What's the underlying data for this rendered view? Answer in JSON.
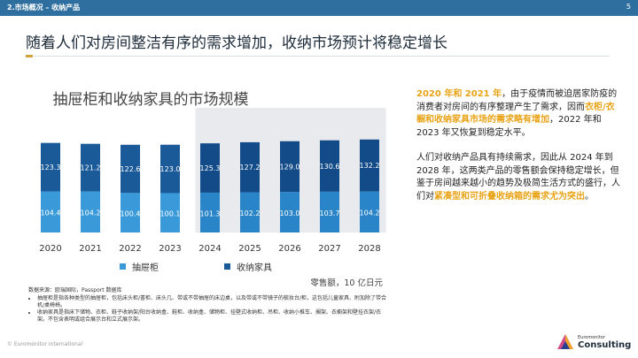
{
  "header": {
    "breadcrumb": "2.市场概况 – 收纳产品",
    "page_number": "5"
  },
  "headline": "随着人们对房间整洁有序的需求增加，收纳市场预计将稳定增长",
  "chart_data": {
    "type": "bar",
    "stacked": true,
    "title": "抽屉柜和收纳家具的市场规模",
    "categories": [
      "2020",
      "2021",
      "2022",
      "2023",
      "2024",
      "2025",
      "2026",
      "2027",
      "2028"
    ],
    "series": [
      {
        "name": "抽屉柜",
        "values": [
          104.4,
          104.2,
          100.4,
          100.1,
          101.3,
          102.2,
          103.0,
          103.7,
          104.2
        ],
        "labels": [
          "104.4",
          "104.2",
          "100.4",
          "100.1",
          "101.3",
          "102.2",
          "103.0",
          "103.7",
          "104.2"
        ]
      },
      {
        "name": "收纳家具",
        "values": [
          123.3,
          121.2,
          122.6,
          123.0,
          125.3,
          127.2,
          129.0,
          130.6,
          132.2
        ],
        "labels": [
          "123.3",
          "121.2",
          "122.6",
          "123.0",
          "125.3",
          "127.2",
          "129.0",
          "130.6",
          "132.2"
        ]
      }
    ],
    "forecast_from": "2024",
    "unit_label": "零售额，10 亿日元",
    "colors": {
      "series1": "#3a9ad9",
      "series1_forecast": "#2a85c8",
      "series2": "#1a5a98",
      "series2_forecast": "#124b87",
      "shade": "#e8eaed"
    }
  },
  "panel": {
    "p1": {
      "year_lead": "2020 年和 2021 年",
      "text_a": "，由于疫情而被迫居家防疫的消费者对房间的有序整理产生了需求，因而",
      "highlight": "衣柜/衣橱和收纳家具市场的需求略有增加",
      "text_b": "，2022 年和 2023 年又恢复到稳定水平。"
    },
    "p2": {
      "text_a": "人们对收纳产品具有持续需求，因此从 2024 年到 2028 年，这两类产品的零售额会保持稳定增长，但鉴于房间越来越小的趋势及极简生活方式的盛行，人们对",
      "highlight": "紧凑型和可折叠收纳箱的需求尤为突出",
      "text_b": "。"
    }
  },
  "source": {
    "title": "数据来源：欧瑞国际，Passport 数据库",
    "notes": [
      "抽屉柜是指各种类型的抽屉柜，包括床头柜/書柜、床头几、带或不带抽屉的床边桌，以及带或不带镜子的梳妆台/柜，这包括儿童家具、附加除了带合机/桌椅椅。",
      "收纳家具是指床下储物、衣柜、鞋子收纳架/阳台收纳盒、鞋柜、收纳盒、储物柜、挂壁式收纳柜、吊柜、收纳小推车、搁架、衣橱架和壁挂衣架/衣架。不包含表明或组合展示台和立式展示架。"
    ]
  },
  "footer": "© Euromonitor International",
  "logo": {
    "line1": "Euromonitor",
    "line2": "Consulting"
  }
}
